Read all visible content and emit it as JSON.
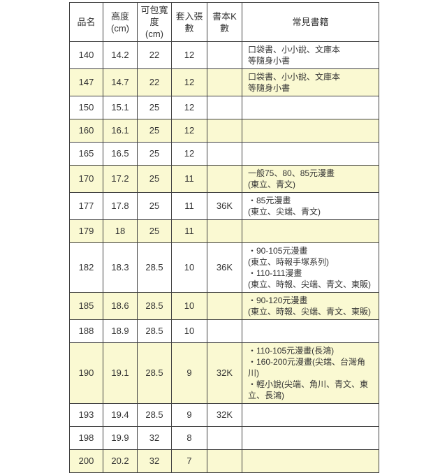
{
  "colors": {
    "highlight": "#faf9d2",
    "border": "#404040",
    "text": "#333333",
    "background": "#ffffff"
  },
  "table": {
    "headers": [
      "品名",
      "高度\n(cm)",
      "可包寬度\n(cm)",
      "套入張數",
      "書本K數",
      "常見書籍"
    ],
    "rows": [
      {
        "name": "140",
        "height_cm": "14.2",
        "wrap_width_cm": "22",
        "sheets": "12",
        "k_size": "",
        "common_books": "口袋書、小小說、文庫本\n等隨身小書",
        "highlighted": false
      },
      {
        "name": "147",
        "height_cm": "14.7",
        "wrap_width_cm": "22",
        "sheets": "12",
        "k_size": "",
        "common_books": "口袋書、小小說、文庫本\n等隨身小書",
        "highlighted": true
      },
      {
        "name": "150",
        "height_cm": "15.1",
        "wrap_width_cm": "25",
        "sheets": "12",
        "k_size": "",
        "common_books": "",
        "highlighted": false
      },
      {
        "name": "160",
        "height_cm": "16.1",
        "wrap_width_cm": "25",
        "sheets": "12",
        "k_size": "",
        "common_books": "",
        "highlighted": true
      },
      {
        "name": "165",
        "height_cm": "16.5",
        "wrap_width_cm": "25",
        "sheets": "12",
        "k_size": "",
        "common_books": "",
        "highlighted": false
      },
      {
        "name": "170",
        "height_cm": "17.2",
        "wrap_width_cm": "25",
        "sheets": "11",
        "k_size": "",
        "common_books": "一般75、80、85元漫畫\n(東立、青文)",
        "highlighted": true
      },
      {
        "name": "177",
        "height_cm": "17.8",
        "wrap_width_cm": "25",
        "sheets": "11",
        "k_size": "36K",
        "common_books": "・85元漫畫\n(東立、尖端、青文)",
        "highlighted": false
      },
      {
        "name": "179",
        "height_cm": "18",
        "wrap_width_cm": "25",
        "sheets": "11",
        "k_size": "",
        "common_books": "",
        "highlighted": true
      },
      {
        "name": "182",
        "height_cm": "18.3",
        "wrap_width_cm": "28.5",
        "sheets": "10",
        "k_size": "36K",
        "common_books": "・90-105元漫畫\n(東立、時報手塚系列)\n・110-111漫畫\n(東立、時報、尖端、青文、東販)",
        "highlighted": false
      },
      {
        "name": "185",
        "height_cm": "18.6",
        "wrap_width_cm": "28.5",
        "sheets": "10",
        "k_size": "",
        "common_books": "・90-120元漫畫\n(東立、時報、尖端、青文、東販)",
        "highlighted": true
      },
      {
        "name": "188",
        "height_cm": "18.9",
        "wrap_width_cm": "28.5",
        "sheets": "10",
        "k_size": "",
        "common_books": "",
        "highlighted": false
      },
      {
        "name": "190",
        "height_cm": "19.1",
        "wrap_width_cm": "28.5",
        "sheets": "9",
        "k_size": "32K",
        "common_books": "・110-105元漫畫(長鴻)\n・160-200元漫畫(尖端、台灣角川)\n・輕小說(尖端、角川、青文、東立、長鴻)",
        "highlighted": true
      },
      {
        "name": "193",
        "height_cm": "19.4",
        "wrap_width_cm": "28.5",
        "sheets": "9",
        "k_size": "32K",
        "common_books": "",
        "highlighted": false
      },
      {
        "name": "198",
        "height_cm": "19.9",
        "wrap_width_cm": "32",
        "sheets": "8",
        "k_size": "",
        "common_books": "",
        "highlighted": false
      },
      {
        "name": "200",
        "height_cm": "20.2",
        "wrap_width_cm": "32",
        "sheets": "7",
        "k_size": "",
        "common_books": "",
        "highlighted": true
      }
    ]
  }
}
